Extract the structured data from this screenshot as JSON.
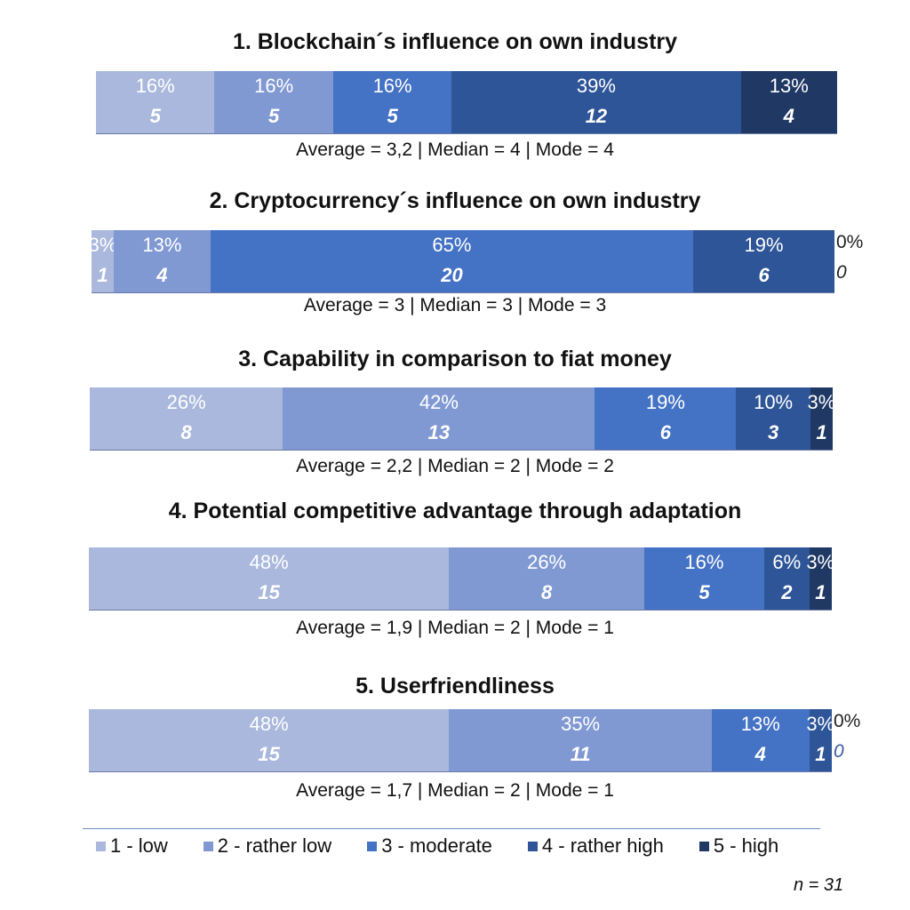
{
  "chart_data": {
    "type": "bar",
    "orientation": "horizontal-stacked-100",
    "legend_position": "bottom",
    "grid": false,
    "series": [
      {
        "name": "1 - low",
        "color": "#a9b8dc"
      },
      {
        "name": "2 -  rather low",
        "color": "#8099d3"
      },
      {
        "name": "3 - moderate",
        "color": "#4472c4"
      },
      {
        "name": "4 - rather high",
        "color": "#2e5597"
      },
      {
        "name": "5 - high",
        "color": "#203864"
      }
    ],
    "panels": [
      {
        "title": "1. Blockchain´s influence on own industry",
        "segments": [
          {
            "value": 16,
            "label": "16%",
            "count": "5"
          },
          {
            "value": 16,
            "label": "16%",
            "count": "5"
          },
          {
            "value": 16,
            "label": "16%",
            "count": "5"
          },
          {
            "value": 39,
            "label": "39%",
            "count": "12"
          },
          {
            "value": 13,
            "label": "13%",
            "count": "4"
          }
        ],
        "stats": "Average  = 3,2 | Median = 4 | Mode = 4"
      },
      {
        "title": "2. Cryptocurrency´s influence on own industry",
        "segments": [
          {
            "value": 3,
            "label": "3%",
            "count": "1"
          },
          {
            "value": 13,
            "label": "13%",
            "count": "4"
          },
          {
            "value": 65,
            "label": "65%",
            "count": "20"
          },
          {
            "value": 19,
            "label": "19%",
            "count": "6"
          },
          {
            "value": 0,
            "label": "0%",
            "count": "0"
          }
        ],
        "stats": "Average = 3 | Median = 3 | Mode = 3"
      },
      {
        "title": "3. Capability in comparison to fiat money",
        "segments": [
          {
            "value": 26,
            "label": "26%",
            "count": "8"
          },
          {
            "value": 42,
            "label": "42%",
            "count": "13"
          },
          {
            "value": 19,
            "label": "19%",
            "count": "6"
          },
          {
            "value": 10,
            "label": "10%",
            "count": "3"
          },
          {
            "value": 3,
            "label": "3%",
            "count": "1"
          }
        ],
        "stats": "Average = 2,2 | Median = 2 | Mode = 2"
      },
      {
        "title": "4. Potential competitive advantage through adaptation",
        "segments": [
          {
            "value": 48,
            "label": "48%",
            "count": "15"
          },
          {
            "value": 26,
            "label": "26%",
            "count": "8"
          },
          {
            "value": 16,
            "label": "16%",
            "count": "5"
          },
          {
            "value": 6,
            "label": "6%",
            "count": "2"
          },
          {
            "value": 3,
            "label": "3%",
            "count": "1"
          }
        ],
        "stats": "Average = 1,9 | Median = 2 | Mode = 1"
      },
      {
        "title": "5. Userfriendliness",
        "segments": [
          {
            "value": 48,
            "label": "48%",
            "count": "15"
          },
          {
            "value": 35,
            "label": "35%",
            "count": "11"
          },
          {
            "value": 13,
            "label": "13%",
            "count": "4"
          },
          {
            "value": 3,
            "label": "3%",
            "count": "1"
          },
          {
            "value": 0,
            "label": "0%",
            "count": "0"
          }
        ],
        "stats": "Average = 1,7 | Median = 2 | Mode = 1"
      }
    ],
    "footnote": "n = 31"
  }
}
